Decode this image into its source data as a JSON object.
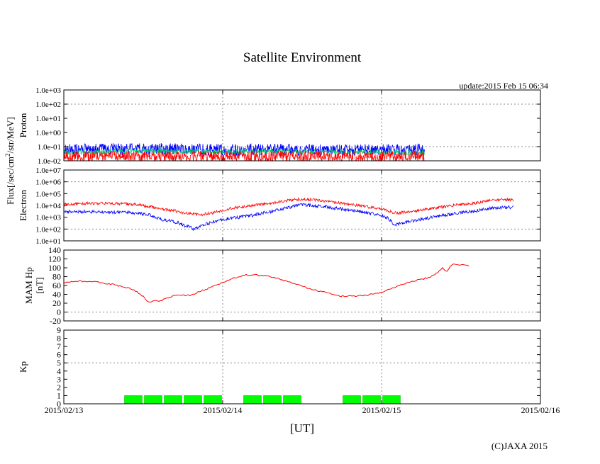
{
  "title": "Satellite Environment",
  "update_text": "update:2015 Feb 15 06:34",
  "copyright": "(C)JAXA 2015",
  "xlabel": "[UT]",
  "x_ticks": [
    "2015/02/13",
    "2015/02/14",
    "2015/02/15",
    "2015/02/16"
  ],
  "flux_label": "Flux[/sec/cm",
  "flux_label_sup": "2",
  "flux_label_tail": "/str/MeV]",
  "colors": {
    "red": "#ff0000",
    "blue": "#0000ff",
    "green": "#00cc66",
    "kp_fill": "#00ff00",
    "kp_stroke": "#00aa00",
    "grid": "#888888"
  },
  "chart_data": [
    {
      "type": "line",
      "name": "proton",
      "ylabel": "Proton",
      "yscale": "log",
      "ylim": [
        0.01,
        1000
      ],
      "y_ticks": [
        "1.0e-02",
        "1.0e-01",
        "1.0e+00",
        "1.0e+01",
        "1.0e+02",
        "1.0e+03"
      ],
      "xlim": [
        0,
        3
      ],
      "series": [
        {
          "name": "blue",
          "color": "#0000ff",
          "points": [
            [
              0,
              0.06
            ],
            [
              0.5,
              0.07
            ],
            [
              1.0,
              0.06
            ],
            [
              1.5,
              0.06
            ],
            [
              2.0,
              0.06
            ],
            [
              2.27,
              0.06
            ]
          ]
        },
        {
          "name": "green",
          "color": "#00cc66",
          "points": [
            [
              0,
              0.04
            ],
            [
              0.5,
              0.05
            ],
            [
              1.0,
              0.045
            ],
            [
              1.5,
              0.045
            ],
            [
              2.0,
              0.04
            ],
            [
              2.27,
              0.04
            ]
          ]
        },
        {
          "name": "red",
          "color": "#ff0000",
          "points": [
            [
              0,
              0.02
            ],
            [
              0.5,
              0.02
            ],
            [
              1.0,
              0.02
            ],
            [
              1.5,
              0.02
            ],
            [
              2.0,
              0.02
            ],
            [
              2.27,
              0.02
            ]
          ]
        }
      ]
    },
    {
      "type": "line",
      "name": "electron",
      "ylabel": "Electron",
      "yscale": "log",
      "ylim": [
        10,
        10000000
      ],
      "y_ticks": [
        "1.0e+01",
        "1.0e+02",
        "1.0e+03",
        "1.0e+04",
        "1.0e+05",
        "1.0e+06",
        "1.0e+07"
      ],
      "xlim": [
        0,
        3
      ],
      "series": [
        {
          "name": "red",
          "color": "#ff0000",
          "points": [
            [
              0,
              12000
            ],
            [
              0.15,
              15000
            ],
            [
              0.3,
              15000
            ],
            [
              0.45,
              12000
            ],
            [
              0.6,
              5000
            ],
            [
              0.7,
              3500
            ],
            [
              0.76,
              2000
            ],
            [
              0.8,
              2200
            ],
            [
              0.85,
              1500
            ],
            [
              0.95,
              2500
            ],
            [
              1.0,
              4000
            ],
            [
              1.1,
              7000
            ],
            [
              1.2,
              10000
            ],
            [
              1.3,
              15000
            ],
            [
              1.4,
              25000
            ],
            [
              1.5,
              35000
            ],
            [
              1.6,
              28000
            ],
            [
              1.7,
              18000
            ],
            [
              1.8,
              12000
            ],
            [
              1.9,
              8000
            ],
            [
              2.0,
              5000
            ],
            [
              2.07,
              2500
            ],
            [
              2.1,
              2200
            ],
            [
              2.15,
              2800
            ],
            [
              2.2,
              3000
            ],
            [
              2.3,
              5000
            ],
            [
              2.4,
              8000
            ],
            [
              2.5,
              12000
            ],
            [
              2.6,
              16000
            ],
            [
              2.7,
              28000
            ],
            [
              2.8,
              30000
            ],
            [
              2.83,
              28000
            ]
          ]
        },
        {
          "name": "blue",
          "color": "#0000ff",
          "points": [
            [
              0,
              3000
            ],
            [
              0.2,
              3000
            ],
            [
              0.4,
              2500
            ],
            [
              0.55,
              1500
            ],
            [
              0.6,
              700
            ],
            [
              0.7,
              400
            ],
            [
              0.76,
              200
            ],
            [
              0.8,
              150
            ],
            [
              0.82,
              80
            ],
            [
              0.87,
              200
            ],
            [
              0.95,
              400
            ],
            [
              1.0,
              600
            ],
            [
              1.1,
              1000
            ],
            [
              1.2,
              1500
            ],
            [
              1.3,
              3000
            ],
            [
              1.4,
              6000
            ],
            [
              1.5,
              12000
            ],
            [
              1.6,
              9000
            ],
            [
              1.7,
              6000
            ],
            [
              1.8,
              4000
            ],
            [
              1.9,
              2500
            ],
            [
              2.0,
              1500
            ],
            [
              2.05,
              600
            ],
            [
              2.08,
              200
            ],
            [
              2.12,
              300
            ],
            [
              2.2,
              500
            ],
            [
              2.3,
              900
            ],
            [
              2.4,
              1500
            ],
            [
              2.5,
              2500
            ],
            [
              2.6,
              3500
            ],
            [
              2.7,
              6000
            ],
            [
              2.8,
              7000
            ],
            [
              2.83,
              7000
            ]
          ]
        }
      ]
    },
    {
      "type": "line",
      "name": "mam_hp",
      "ylabel": "MAM Hp",
      "ylabel2": "[nT]",
      "yscale": "linear",
      "ylim": [
        -20,
        140
      ],
      "y_ticks": [
        "-20",
        "0",
        "20",
        "40",
        "60",
        "80",
        "100",
        "120",
        "140"
      ],
      "xlim": [
        0,
        3
      ],
      "series": [
        {
          "name": "hp",
          "color": "#ff0000",
          "points": [
            [
              0,
              67
            ],
            [
              0.1,
              70
            ],
            [
              0.2,
              68
            ],
            [
              0.3,
              63
            ],
            [
              0.4,
              55
            ],
            [
              0.45,
              48
            ],
            [
              0.5,
              35
            ],
            [
              0.52,
              25
            ],
            [
              0.55,
              23
            ],
            [
              0.58,
              27
            ],
            [
              0.6,
              24
            ],
            [
              0.65,
              32
            ],
            [
              0.7,
              37
            ],
            [
              0.75,
              38
            ],
            [
              0.8,
              38
            ],
            [
              0.85,
              46
            ],
            [
              0.9,
              52
            ],
            [
              0.95,
              60
            ],
            [
              1.0,
              66
            ],
            [
              1.05,
              74
            ],
            [
              1.1,
              80
            ],
            [
              1.15,
              84
            ],
            [
              1.2,
              84
            ],
            [
              1.25,
              82
            ],
            [
              1.3,
              80
            ],
            [
              1.4,
              70
            ],
            [
              1.5,
              58
            ],
            [
              1.6,
              48
            ],
            [
              1.7,
              40
            ],
            [
              1.75,
              36
            ],
            [
              1.8,
              36
            ],
            [
              1.9,
              38
            ],
            [
              2.0,
              45
            ],
            [
              2.1,
              58
            ],
            [
              2.2,
              70
            ],
            [
              2.3,
              78
            ],
            [
              2.33,
              85
            ],
            [
              2.35,
              88
            ],
            [
              2.38,
              100
            ],
            [
              2.41,
              92
            ],
            [
              2.43,
              102
            ],
            [
              2.45,
              108
            ],
            [
              2.5,
              107
            ],
            [
              2.55,
              105
            ]
          ]
        }
      ]
    },
    {
      "type": "bar",
      "name": "kp",
      "ylabel": "Kp",
      "yscale": "linear",
      "ylim": [
        0,
        9
      ],
      "y_ticks": [
        "0",
        "1",
        "2",
        "3",
        "4",
        "5",
        "6",
        "7",
        "8",
        "9"
      ],
      "xlim": [
        0,
        3
      ],
      "bar_width": 0.125,
      "bars": [
        {
          "x": 0.375,
          "value": 1
        },
        {
          "x": 0.5,
          "value": 1
        },
        {
          "x": 0.625,
          "value": 1
        },
        {
          "x": 0.75,
          "value": 1
        },
        {
          "x": 0.875,
          "value": 1
        },
        {
          "x": 1.125,
          "value": 1
        },
        {
          "x": 1.25,
          "value": 1
        },
        {
          "x": 1.375,
          "value": 1
        },
        {
          "x": 1.75,
          "value": 1
        },
        {
          "x": 1.875,
          "value": 1
        },
        {
          "x": 2.0,
          "value": 1
        }
      ]
    }
  ]
}
